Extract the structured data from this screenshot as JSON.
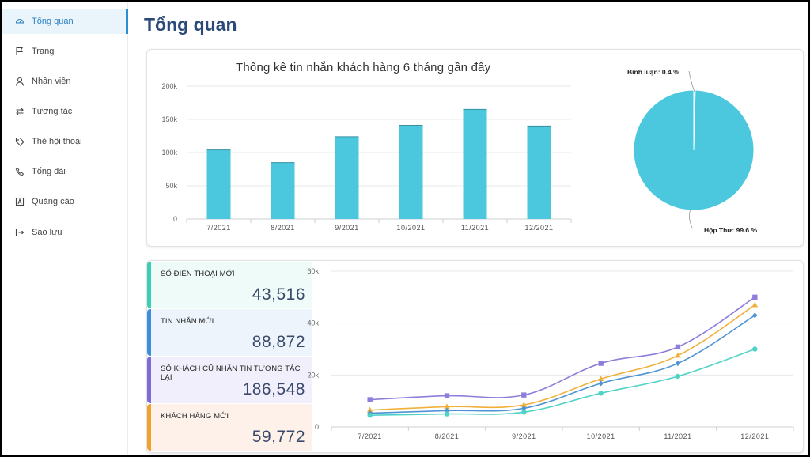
{
  "sidebar": {
    "items": [
      {
        "label": "Tổng quan",
        "icon": "dashboard-icon",
        "active": true
      },
      {
        "label": "Trang",
        "icon": "flag-icon",
        "active": false
      },
      {
        "label": "Nhân viên",
        "icon": "user-icon",
        "active": false
      },
      {
        "label": "Tương tác",
        "icon": "swap-icon",
        "active": false
      },
      {
        "label": "Thẻ hội thoại",
        "icon": "tag-icon",
        "active": false
      },
      {
        "label": "Tổng đài",
        "icon": "phone-icon",
        "active": false
      },
      {
        "label": "Quảng cáo",
        "icon": "ad-icon",
        "active": false
      },
      {
        "label": "Sao lưu",
        "icon": "backup-icon",
        "active": false
      }
    ]
  },
  "page": {
    "title": "Tổng quan"
  },
  "colors": {
    "accent": "#2a8ed6",
    "bar": "#4bc8de",
    "title": "#2c4a79",
    "line_purple": "#8e7ddb",
    "line_orange": "#f0b03a",
    "line_blue": "#4e93d4",
    "line_teal": "#4ed3c6"
  },
  "stats": [
    {
      "label": "Số điện thoại mới",
      "value": "43,516",
      "color": "#3ccfb4",
      "bg": "#eefbf8"
    },
    {
      "label": "Tin nhắn mới",
      "value": "88,872",
      "color": "#3a8fe0",
      "bg": "#edf4fc"
    },
    {
      "label": "Số khách cũ nhắn tin tương tác lại",
      "value": "186,548",
      "color": "#7f6ad6",
      "bg": "#f1effb"
    },
    {
      "label": "Khách hàng mới",
      "value": "59,772",
      "color": "#f0a22e",
      "bg": "#fdf1ea"
    }
  ],
  "chart_data": [
    {
      "type": "bar",
      "title": "Thống kê tin nhắn khách hàng 6 tháng gần đây",
      "categories": [
        "7/2021",
        "8/2021",
        "9/2021",
        "10/2021",
        "11/2021",
        "12/2021"
      ],
      "values": [
        104000,
        85000,
        124000,
        141000,
        165000,
        140000
      ],
      "ylim": [
        0,
        200000
      ],
      "yticks": [
        "0",
        "50k",
        "100k",
        "150k",
        "200k"
      ],
      "grid": true
    },
    {
      "type": "pie",
      "slices": [
        {
          "label": "Bình luận: 0.4 %",
          "value": 0.4
        },
        {
          "label": "Hộp Thư: 99.6 %",
          "value": 99.6
        }
      ]
    },
    {
      "type": "line",
      "categories": [
        "7/2021",
        "8/2021",
        "9/2021",
        "10/2021",
        "11/2021",
        "12/2021"
      ],
      "ylim": [
        0,
        60000
      ],
      "yticks": [
        "0",
        "20k",
        "40k",
        "60k"
      ],
      "grid": true,
      "series": [
        {
          "values": [
            10500,
            12000,
            12300,
            24500,
            30800,
            50000
          ],
          "color": "#8e7ddb",
          "marker": "square"
        },
        {
          "values": [
            6500,
            7800,
            8500,
            18500,
            27500,
            47000
          ],
          "color": "#f0b03a",
          "marker": "triangle"
        },
        {
          "values": [
            5300,
            6300,
            7200,
            16800,
            24500,
            43000
          ],
          "color": "#4e93d4",
          "marker": "diamond"
        },
        {
          "values": [
            4500,
            5000,
            5700,
            13000,
            19500,
            30000
          ],
          "color": "#4ed3c6",
          "marker": "circle"
        }
      ]
    }
  ]
}
